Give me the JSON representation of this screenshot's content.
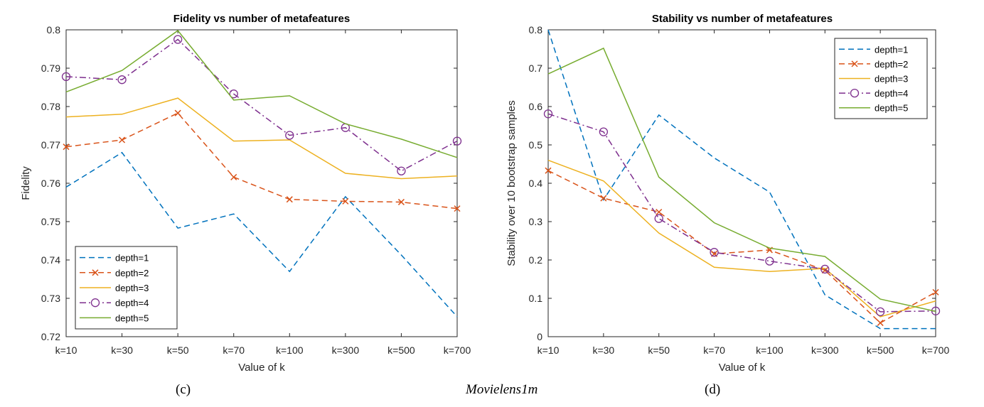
{
  "figure_caption": "Movielens1m",
  "chart_data": [
    {
      "type": "line",
      "panel_label": "(c)",
      "title": "Fidelity vs number of metafeatures",
      "xlabel": "Value of k",
      "ylabel": "Fidelity",
      "categories": [
        "k=10",
        "k=30",
        "k=50",
        "k=70",
        "k=100",
        "k=300",
        "k=500",
        "k=700"
      ],
      "ylim": [
        0.72,
        0.8
      ],
      "yticks": [
        "0.72",
        "0.73",
        "0.74",
        "0.75",
        "0.76",
        "0.77",
        "0.78",
        "0.79",
        "0.8"
      ],
      "legend_position": "bottom-left",
      "grid": false,
      "series": [
        {
          "name": "depth=1",
          "color": "#0072BD",
          "dash": "dashed",
          "marker": "none",
          "values": [
            0.759,
            0.768,
            0.7483,
            0.752,
            0.737,
            0.7565,
            0.7413,
            0.7252
          ]
        },
        {
          "name": "depth=2",
          "color": "#D95319",
          "dash": "dashed",
          "marker": "x",
          "values": [
            0.7695,
            0.7713,
            0.7783,
            0.7616,
            0.7558,
            0.7553,
            0.7551,
            0.7534
          ]
        },
        {
          "name": "depth=3",
          "color": "#EDB120",
          "dash": "solid",
          "marker": "none",
          "values": [
            0.7773,
            0.778,
            0.7822,
            0.771,
            0.7713,
            0.7626,
            0.7612,
            0.7619
          ]
        },
        {
          "name": "depth=4",
          "color": "#7E2F8E",
          "dash": "dashdot",
          "marker": "o",
          "values": [
            0.7878,
            0.787,
            0.7975,
            0.7833,
            0.7725,
            0.7745,
            0.7632,
            0.771
          ]
        },
        {
          "name": "depth=5",
          "color": "#77AC30",
          "dash": "solid",
          "marker": "none",
          "values": [
            0.7838,
            0.7894,
            0.7998,
            0.7817,
            0.7828,
            0.7755,
            0.7715,
            0.7667
          ]
        }
      ]
    },
    {
      "type": "line",
      "panel_label": "(d)",
      "title": "Stability vs number of metafeatures",
      "xlabel": "Value of k",
      "ylabel": "Stability over 10 bootstrap samples",
      "categories": [
        "k=10",
        "k=30",
        "k=50",
        "k=70",
        "k=100",
        "k=300",
        "k=500",
        "k=700"
      ],
      "ylim": [
        0,
        0.8
      ],
      "yticks": [
        "0",
        "0.1",
        "0.2",
        "0.3",
        "0.4",
        "0.5",
        "0.6",
        "0.7",
        "0.8"
      ],
      "legend_position": "top-right",
      "grid": false,
      "series": [
        {
          "name": "depth=1",
          "color": "#0072BD",
          "dash": "dashed",
          "marker": "none",
          "values": [
            0.8,
            0.357,
            0.578,
            0.466,
            0.377,
            0.109,
            0.021,
            0.021
          ]
        },
        {
          "name": "depth=2",
          "color": "#D95319",
          "dash": "dashed",
          "marker": "x",
          "values": [
            0.433,
            0.361,
            0.325,
            0.216,
            0.226,
            0.173,
            0.036,
            0.116
          ]
        },
        {
          "name": "depth=3",
          "color": "#EDB120",
          "dash": "solid",
          "marker": "none",
          "values": [
            0.46,
            0.406,
            0.27,
            0.181,
            0.17,
            0.178,
            0.052,
            0.093
          ]
        },
        {
          "name": "depth=4",
          "color": "#7E2F8E",
          "dash": "dashdot",
          "marker": "o",
          "values": [
            0.581,
            0.534,
            0.308,
            0.22,
            0.197,
            0.176,
            0.065,
            0.067
          ]
        },
        {
          "name": "depth=5",
          "color": "#77AC30",
          "dash": "solid",
          "marker": "none",
          "values": [
            0.685,
            0.752,
            0.416,
            0.297,
            0.231,
            0.209,
            0.098,
            0.066
          ]
        }
      ]
    }
  ]
}
